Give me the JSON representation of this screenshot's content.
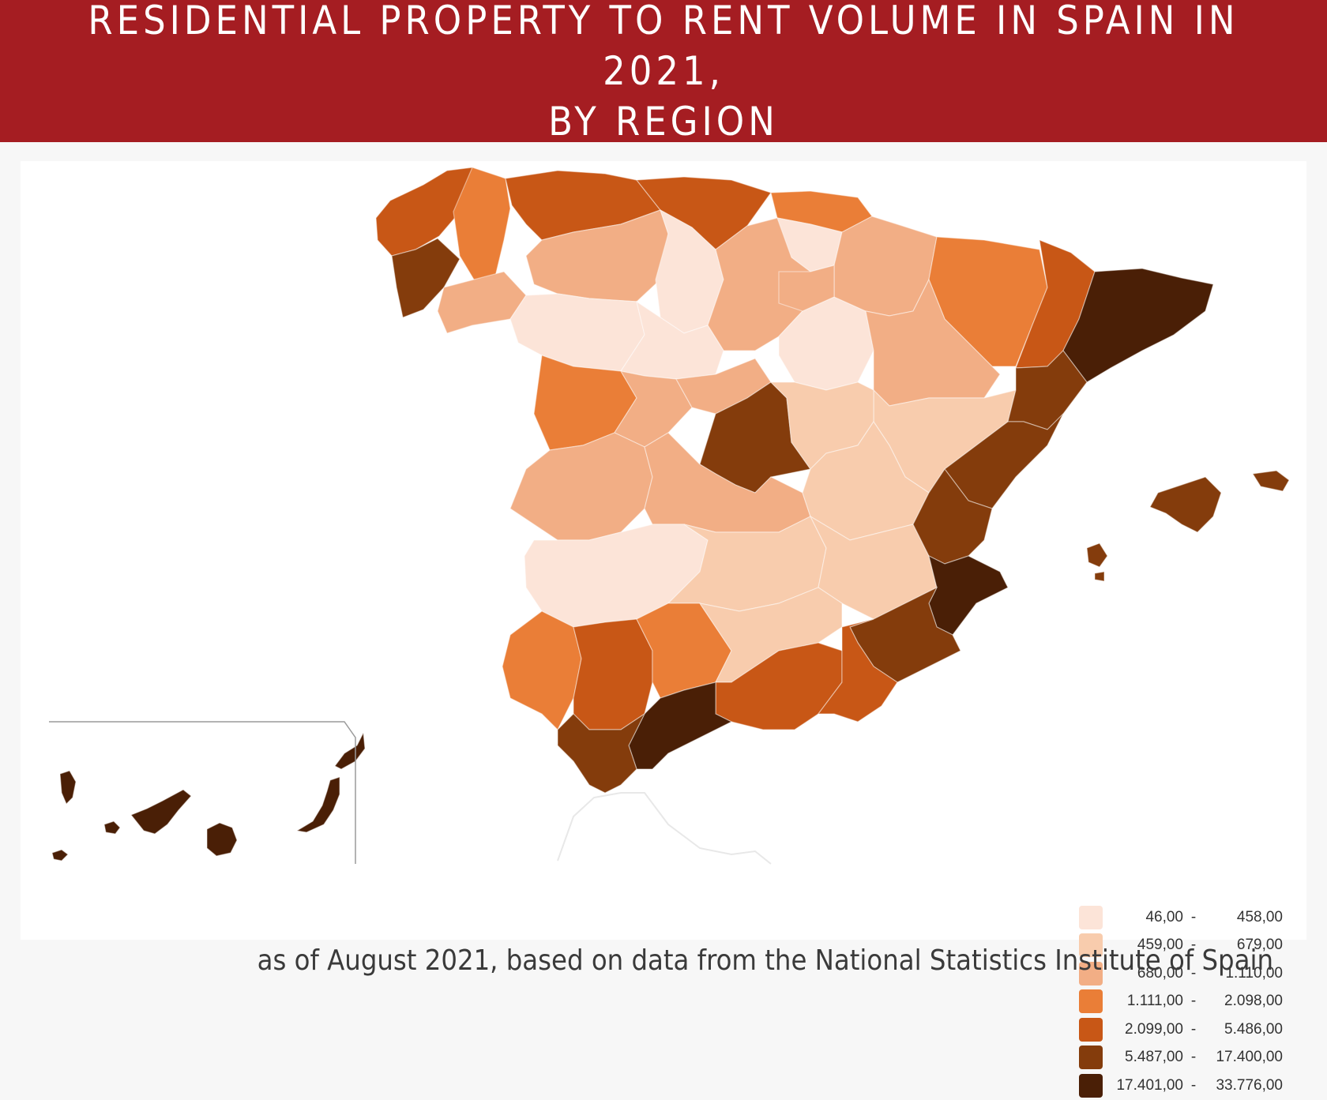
{
  "header": {
    "title_line1": "RESIDENTIAL PROPERTY TO RENT VOLUME IN SPAIN IN 2021,",
    "title_line2": "BY REGION"
  },
  "source": "as of August 2021, based on data from the National Statistics Institute of Spain",
  "colors": {
    "header_bg": "#a51d22",
    "bins": [
      "#fce4d8",
      "#f8ccad",
      "#f2ae85",
      "#ea7e37",
      "#c85716",
      "#843c0c",
      "#4a1f06"
    ]
  },
  "legend": [
    {
      "low": "46,00",
      "sep": "-",
      "high": "458,00",
      "bin": 0
    },
    {
      "low": "459,00",
      "sep": "-",
      "high": "679,00",
      "bin": 1
    },
    {
      "low": "680,00",
      "sep": "-",
      "high": "1.110,00",
      "bin": 2
    },
    {
      "low": "1.111,00",
      "sep": "-",
      "high": "2.098,00",
      "bin": 3
    },
    {
      "low": "2.099,00",
      "sep": "-",
      "high": "5.486,00",
      "bin": 4
    },
    {
      "low": "5.487,00",
      "sep": "-",
      "high": "17.400,00",
      "bin": 5
    },
    {
      "low": "17.401,00",
      "sep": "-",
      "high": "33.776,00",
      "bin": 6
    }
  ]
}
